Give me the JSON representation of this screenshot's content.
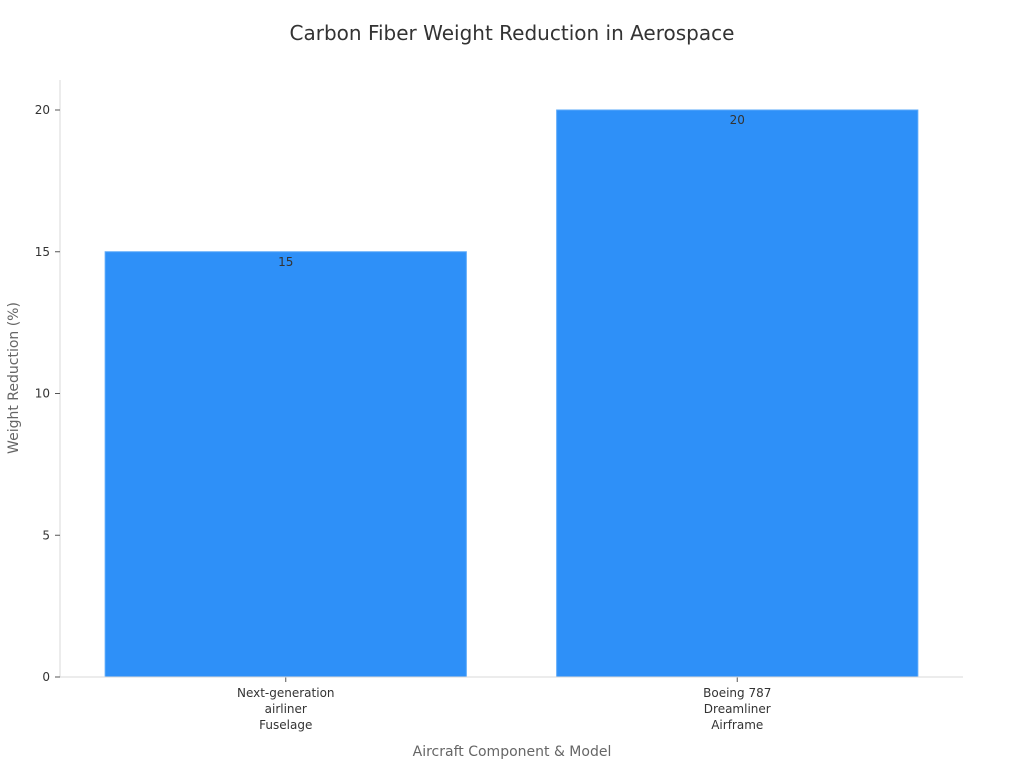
{
  "chart_data": {
    "type": "bar",
    "title": "Carbon Fiber Weight Reduction in Aerospace",
    "xlabel": "Aircraft Component & Model",
    "ylabel": "Weight Reduction (%)",
    "categories": [
      [
        "Next-generation",
        "airliner",
        "Fuselage"
      ],
      [
        "Boeing 787",
        "Dreamliner",
        "Airframe"
      ]
    ],
    "values": [
      15,
      20
    ],
    "data_labels": [
      "15",
      "20"
    ],
    "y_ticks": [
      0,
      5,
      10,
      15,
      20
    ],
    "ylim": [
      0,
      20
    ],
    "bar_color": "#2e90f8",
    "grid": false,
    "legend": "none"
  }
}
